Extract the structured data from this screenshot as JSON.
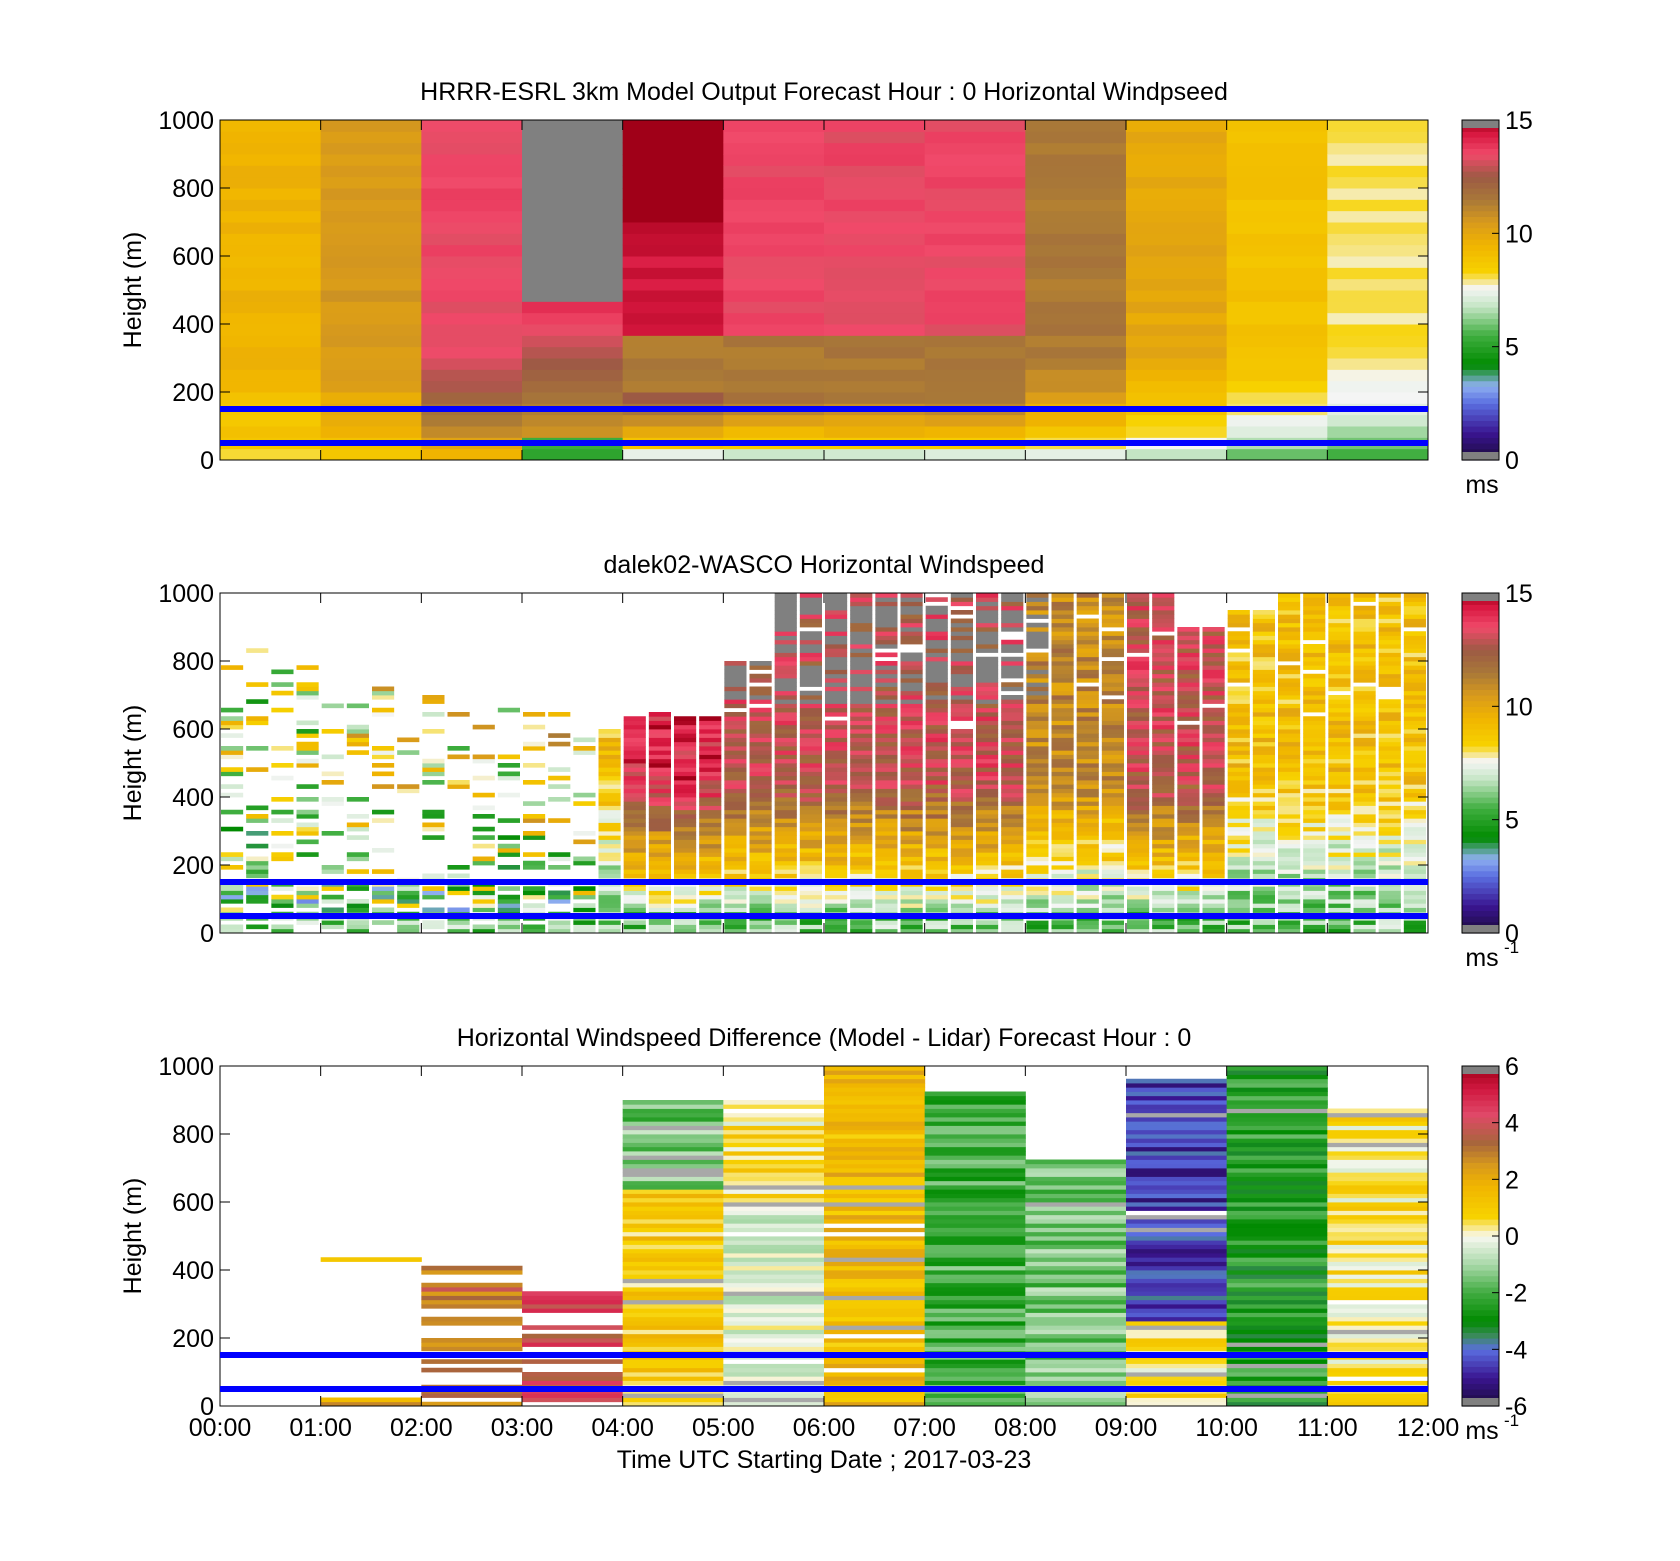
{
  "figure": {
    "xlabel": "Time UTC  Starting Date ; 2017-03-23",
    "x_ticks": [
      "00:00",
      "01:00",
      "02:00",
      "03:00",
      "04:00",
      "05:00",
      "06:00",
      "07:00",
      "08:00",
      "09:00",
      "10:00",
      "11:00",
      "12:00"
    ],
    "y_ticks": [
      "0",
      "200",
      "400",
      "600",
      "800",
      "1000"
    ],
    "ylabel": "Height (m)",
    "reference_lines_m": [
      50,
      150
    ],
    "reference_line_color": "#0000ff"
  },
  "panels": [
    {
      "title": "HRRR-ESRL 3km Model Output   Forecast Hour : 0 Horizontal Windpseed",
      "colorbar": {
        "ticks": [
          "0",
          "5",
          "10",
          "15"
        ],
        "unit": "ms",
        "unit_sup": ""
      }
    },
    {
      "title": "dalek02-WASCO  Horizontal Windspeed",
      "colorbar": {
        "ticks": [
          "0",
          "5",
          "10",
          "15"
        ],
        "unit": "ms",
        "unit_sup": "-1"
      }
    },
    {
      "title": "Horizontal Windspeed Difference (Model - Lidar) Forecast Hour : 0",
      "colorbar": {
        "ticks": [
          "-6",
          "-4",
          "-2",
          "0",
          "2",
          "4",
          "6"
        ],
        "unit": "ms",
        "unit_sup": "-1"
      }
    }
  ],
  "chart_data": [
    {
      "type": "heatmap",
      "title": "HRRR-ESRL 3km Model Output   Forecast Hour : 0 Horizontal Windpseed",
      "ylabel": "Height (m)",
      "x_hours": [
        0,
        1,
        2,
        3,
        4,
        5,
        6,
        7,
        8,
        9,
        10,
        11,
        12
      ],
      "ylim": [
        0,
        1000
      ],
      "clim": [
        0,
        15
      ],
      "colorbar_unit": "ms",
      "approx_windspeed_by_hour_upper": [
        9.5,
        10.5,
        13.5,
        null,
        14.5,
        13.5,
        13.5,
        13.5,
        11.5,
        10,
        9,
        8
      ],
      "approx_windspeed_by_hour_near_surface": [
        8,
        8,
        8,
        6,
        5,
        5,
        5,
        5,
        6,
        6,
        5,
        5
      ],
      "note_gray": "values above colour scale between 03:00 and 04:00 above 450 m"
    },
    {
      "type": "heatmap",
      "title": "dalek02-WASCO  Horizontal Windspeed",
      "ylabel": "Height (m)",
      "x_hours": [
        0,
        1,
        2,
        3,
        4,
        5,
        6,
        7,
        8,
        9,
        10,
        11,
        12
      ],
      "ylim": [
        0,
        1000
      ],
      "clim": [
        0,
        15
      ],
      "colorbar_unit": "ms-1",
      "data_top_by_half_hour_m": [
        850,
        800,
        720,
        720,
        700,
        680,
        660,
        600,
        650,
        640,
        800,
        1000,
        1000,
        1000,
        1000,
        1000,
        1000,
        1000,
        1000,
        900,
        950,
        1000,
        1000,
        1000
      ],
      "approx_windspeed_by_hour_upper": [
        7,
        8,
        8,
        9,
        14,
        13,
        13,
        13,
        11,
        13,
        9,
        9
      ]
    },
    {
      "type": "heatmap",
      "title": "Horizontal Windspeed Difference (Model - Lidar) Forecast Hour : 0",
      "ylabel": "Height (m)",
      "x_hours": [
        0,
        1,
        2,
        3,
        4,
        5,
        6,
        7,
        8,
        9,
        10,
        11,
        12
      ],
      "ylim": [
        0,
        1000
      ],
      "clim": [
        -6,
        6
      ],
      "colorbar_unit": "ms-1",
      "approx_difference_by_hour": [
        null,
        2,
        3,
        4,
        1,
        0.5,
        1.5,
        -2,
        -1.5,
        -4.5,
        -2.5,
        0.5
      ]
    }
  ]
}
